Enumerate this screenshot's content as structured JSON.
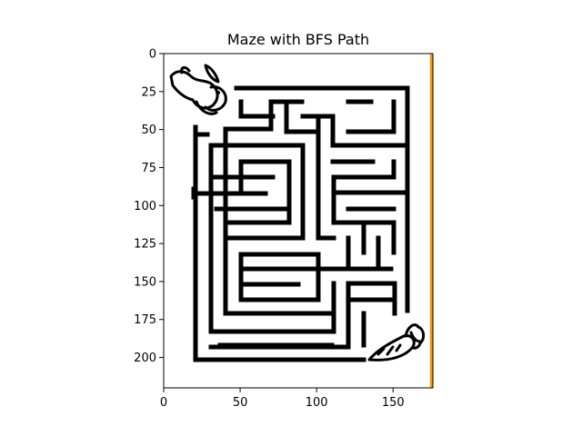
{
  "chart_data": {
    "type": "image",
    "title": "Maze with BFS Path",
    "xlabel": "",
    "ylabel": "",
    "xlim": [
      0,
      176
    ],
    "ylim": [
      220,
      0
    ],
    "x_ticks": [
      0,
      50,
      100,
      150
    ],
    "y_ticks": [
      0,
      25,
      50,
      75,
      100,
      125,
      150,
      175,
      200
    ],
    "path_color": "#ff9900",
    "bfs_path": {
      "x": [
        175,
        175
      ],
      "y": [
        0,
        220
      ]
    },
    "wall_color": "#000000",
    "background_color": "#ffffff"
  }
}
